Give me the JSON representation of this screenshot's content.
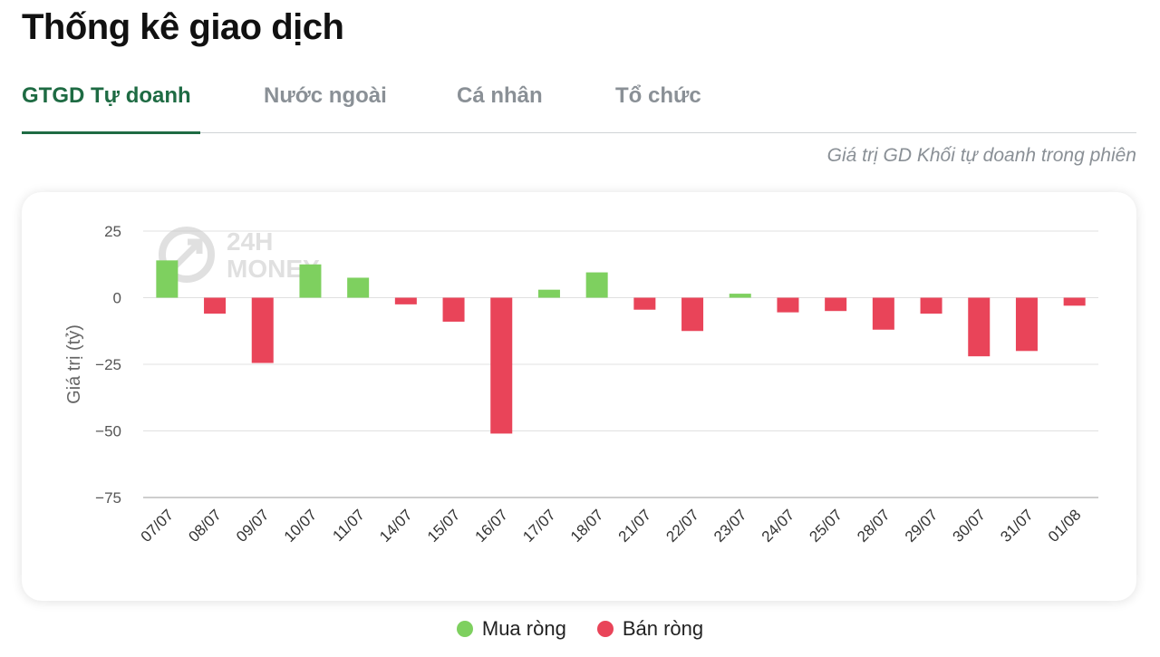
{
  "page": {
    "title": "Thống kê giao dịch",
    "subtitle": "Giá trị GD Khối tự doanh trong phiên"
  },
  "tabs": [
    {
      "label": "GTGD Tự doanh",
      "active": true
    },
    {
      "label": "Nước ngoài",
      "active": false
    },
    {
      "label": "Cá nhân",
      "active": false
    },
    {
      "label": "Tổ chức",
      "active": false
    }
  ],
  "watermark": {
    "text_top": "24H",
    "text_bottom": "MONEY"
  },
  "colors": {
    "positive": "#7ed05f",
    "negative": "#e94459",
    "accent": "#1e6b43",
    "grid": "#e0e0e0"
  },
  "chart_data": {
    "type": "bar",
    "ylabel": "Giá trị (tỷ)",
    "xlabel": "",
    "ylim": [
      -75,
      25
    ],
    "yticks": [
      25,
      0,
      -25,
      -50,
      -75
    ],
    "ytick_labels": [
      "25",
      "0",
      "−25",
      "−50",
      "−75"
    ],
    "grid": true,
    "legend_position": "bottom",
    "categories": [
      "07/07",
      "08/07",
      "09/07",
      "10/07",
      "11/07",
      "14/07",
      "15/07",
      "16/07",
      "17/07",
      "18/07",
      "21/07",
      "22/07",
      "23/07",
      "24/07",
      "25/07",
      "28/07",
      "29/07",
      "30/07",
      "31/07",
      "01/08"
    ],
    "values": [
      14,
      -6,
      -24.5,
      12.5,
      7.5,
      -2.5,
      -9,
      -51,
      3,
      9.5,
      -4.5,
      -12.5,
      1.5,
      -5.5,
      -5,
      -12,
      -6,
      -22,
      -20,
      -3
    ],
    "legend": [
      {
        "label": "Mua ròng",
        "color": "#7ed05f"
      },
      {
        "label": "Bán ròng",
        "color": "#e94459"
      }
    ]
  }
}
